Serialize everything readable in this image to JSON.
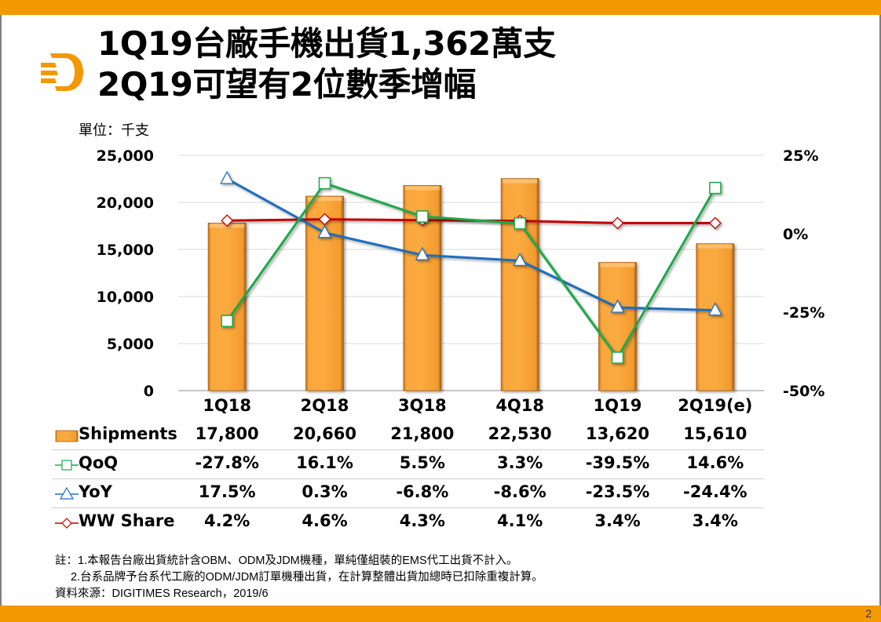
{
  "slide": {
    "title_line1": "1Q19台廠手機出貨1,362萬支",
    "title_line2": "2Q19可望有2位數季增幅",
    "unit_label": "單位：千支",
    "page_number": "2",
    "brand_color": "#F39800",
    "notes": [
      "註：1.本報告台廠出貨統計含OBM、ODM及JDM機種，單純僅組裝的EMS代工出貨不計入。",
      "2.台系品牌予台系代工廠的ODM/JDM訂單機種出貨，在計算整體出貨加總時已扣除重複計算。",
      "資料來源：DIGITIMES Research，2019/6"
    ]
  },
  "chart_data": {
    "type": "bar",
    "title": "1Q19台廠手機出貨1,362萬支 2Q19可望有2位數季增幅",
    "categories": [
      "1Q18",
      "2Q18",
      "3Q18",
      "4Q18",
      "1Q19",
      "2Q19(e)"
    ],
    "ylabel": "單位：千支",
    "ylim": [
      0,
      25000
    ],
    "yticks": [
      "25,000",
      "20,000",
      "15,000",
      "10,000",
      "5,000",
      "0"
    ],
    "y2lim": [
      -50,
      25
    ],
    "y2ticks": [
      "25%",
      "0%",
      "-25%",
      "-50%"
    ],
    "grid": true,
    "legend": "data-table-below",
    "series": [
      {
        "name": "Shipments",
        "type": "bar",
        "axis": "left",
        "color": "#F7A035",
        "values": [
          17800,
          20660,
          21800,
          22530,
          13620,
          15610
        ],
        "labels": [
          "17,800",
          "20,660",
          "21,800",
          "22,530",
          "13,620",
          "15,610"
        ]
      },
      {
        "name": "QoQ",
        "type": "line",
        "axis": "right",
        "marker": "square",
        "color": "#1DA84B",
        "values": [
          -27.8,
          16.1,
          5.5,
          3.3,
          -39.5,
          14.6
        ],
        "labels": [
          "-27.8%",
          "16.1%",
          "5.5%",
          "3.3%",
          "-39.5%",
          "14.6%"
        ]
      },
      {
        "name": "YoY",
        "type": "line",
        "axis": "right",
        "marker": "triangle",
        "color": "#1F6DBE",
        "values": [
          17.5,
          0.3,
          -6.8,
          -8.6,
          -23.5,
          -24.4
        ],
        "labels": [
          "17.5%",
          "0.3%",
          "-6.8%",
          "-8.6%",
          "-23.5%",
          "-24.4%"
        ]
      },
      {
        "name": "WW Share",
        "type": "line",
        "axis": "right",
        "marker": "diamond",
        "color": "#C00000",
        "values": [
          4.2,
          4.6,
          4.3,
          4.1,
          3.4,
          3.4
        ],
        "labels": [
          "4.2%",
          "4.6%",
          "4.3%",
          "4.1%",
          "3.4%",
          "3.4%"
        ]
      }
    ]
  }
}
